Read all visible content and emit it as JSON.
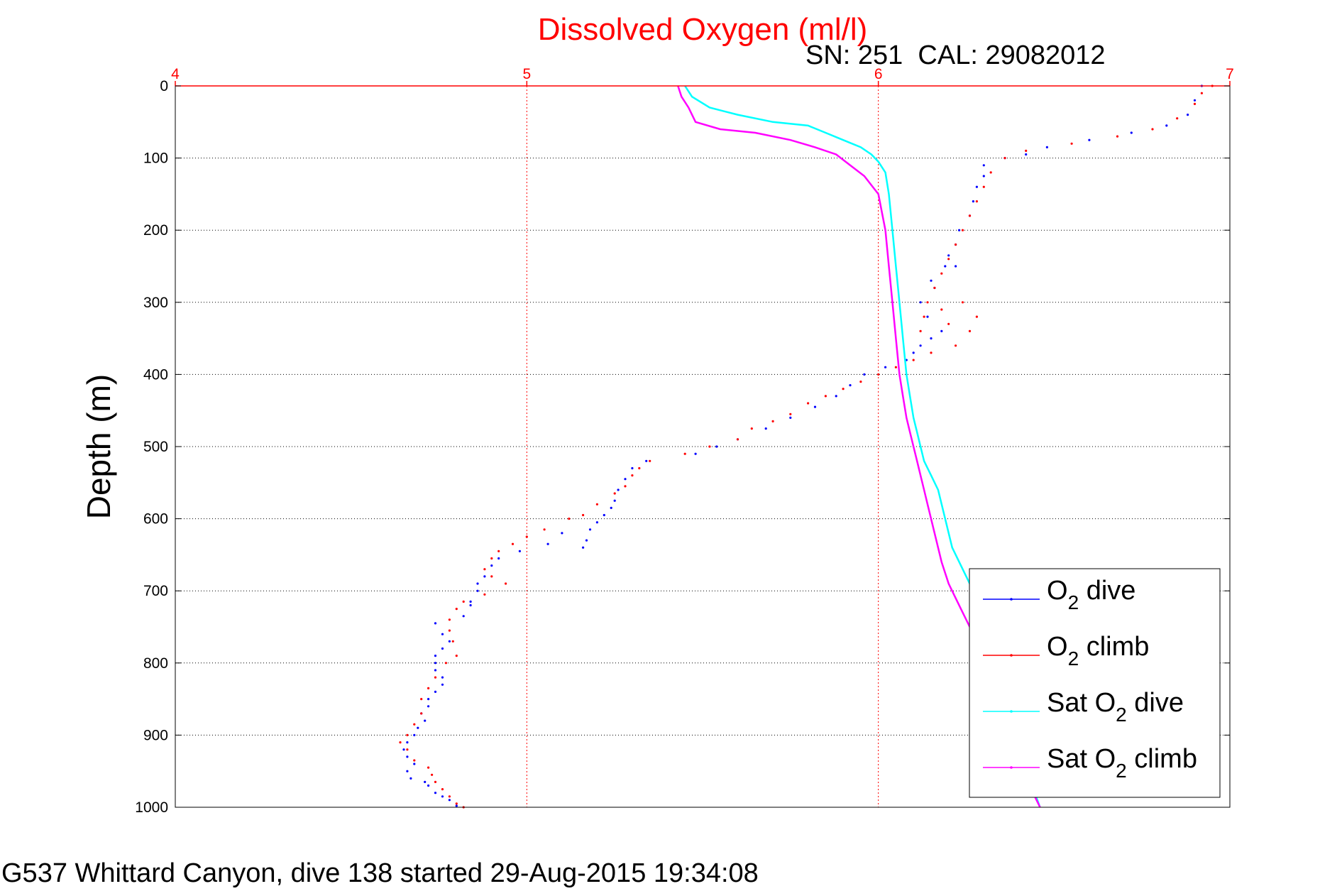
{
  "footer": "G537 Whittard Canyon, dive 138 started 29-Aug-2015 19:34:08",
  "chart_data": {
    "type": "scatter",
    "title": "Dissolved Oxygen (ml/l)",
    "subtitle": "SN: 251  CAL: 29082012",
    "ylabel": "Depth (m)",
    "xlabel": "",
    "xlim": [
      4,
      7
    ],
    "ylim": [
      0,
      1000
    ],
    "y_reversed": true,
    "x_axis_position": "top",
    "xticks": [
      "4",
      "5",
      "6",
      "7"
    ],
    "yticks": [
      "0",
      "100",
      "200",
      "300",
      "400",
      "500",
      "600",
      "700",
      "800",
      "900",
      "1000"
    ],
    "grid": true,
    "legend_position": "bottom-right",
    "series": [
      {
        "name": "O",
        "sub": "2",
        "suffix": " dive",
        "color": "#0000ff",
        "style": "points",
        "x": [
          6.92,
          6.9,
          6.88,
          6.82,
          6.72,
          6.6,
          6.48,
          6.42,
          6.36,
          6.3,
          6.3,
          6.28,
          6.27,
          6.26,
          6.23,
          6.22,
          6.2,
          6.19,
          6.15,
          6.22,
          6.16,
          6.12,
          6.14,
          6.18,
          6.15,
          6.12,
          6.1,
          6.08,
          6.02,
          5.96,
          5.92,
          5.88,
          5.82,
          5.75,
          5.68,
          5.6,
          5.54,
          5.48,
          5.34,
          5.3,
          5.28,
          5.26,
          5.25,
          5.24,
          5.22,
          5.2,
          5.18,
          5.17,
          5.16,
          5.1,
          5.06,
          4.98,
          4.92,
          4.9,
          4.88,
          4.86,
          4.86,
          4.84,
          4.84,
          4.82,
          4.74,
          4.76,
          4.78,
          4.76,
          4.74,
          4.74,
          4.74,
          4.76,
          4.76,
          4.74,
          4.72,
          4.72,
          4.7,
          4.71,
          4.69,
          4.68,
          4.66,
          4.65,
          4.66,
          4.68,
          4.66,
          4.67,
          4.71,
          4.72,
          4.74,
          4.76,
          4.78,
          4.8
        ],
        "y": [
          0,
          20,
          40,
          55,
          65,
          75,
          85,
          95,
          100,
          110,
          125,
          140,
          160,
          180,
          200,
          220,
          235,
          250,
          270,
          250,
          280,
          300,
          320,
          340,
          350,
          360,
          370,
          380,
          390,
          400,
          415,
          430,
          445,
          460,
          475,
          490,
          500,
          510,
          520,
          530,
          545,
          560,
          575,
          585,
          595,
          605,
          615,
          630,
          640,
          620,
          635,
          645,
          655,
          665,
          680,
          690,
          700,
          715,
          720,
          735,
          745,
          760,
          770,
          780,
          790,
          800,
          810,
          820,
          830,
          840,
          850,
          860,
          870,
          880,
          890,
          900,
          910,
          920,
          930,
          940,
          950,
          960,
          965,
          970,
          980,
          985,
          990,
          998
        ]
      },
      {
        "name": "O",
        "sub": "2",
        "suffix": " climb",
        "color": "#ff0000",
        "style": "points",
        "x": [
          6.95,
          6.92,
          6.9,
          6.85,
          6.78,
          6.68,
          6.55,
          6.42,
          6.36,
          6.32,
          6.3,
          6.28,
          6.26,
          6.24,
          6.22,
          6.2,
          6.18,
          6.16,
          6.14,
          6.13,
          6.12,
          6.2,
          6.18,
          6.24,
          6.28,
          6.26,
          6.22,
          6.15,
          6.1,
          6.05,
          6.0,
          5.95,
          5.9,
          5.85,
          5.8,
          5.75,
          5.7,
          5.64,
          5.6,
          5.52,
          5.45,
          5.35,
          5.32,
          5.3,
          5.28,
          5.25,
          5.2,
          5.16,
          5.12,
          5.05,
          5.0,
          4.96,
          4.92,
          4.9,
          4.88,
          4.9,
          4.94,
          4.88,
          4.82,
          4.8,
          4.78,
          4.78,
          4.79,
          4.8,
          4.77,
          4.74,
          4.72,
          4.7,
          4.7,
          4.68,
          4.66,
          4.64,
          4.66,
          4.68,
          4.72,
          4.73,
          4.74,
          4.76,
          4.78,
          4.8,
          4.82
        ],
        "y": [
          0,
          10,
          25,
          45,
          60,
          70,
          80,
          90,
          100,
          120,
          140,
          160,
          180,
          200,
          220,
          240,
          260,
          280,
          300,
          320,
          340,
          330,
          310,
          300,
          320,
          340,
          360,
          370,
          380,
          390,
          400,
          410,
          420,
          430,
          440,
          455,
          465,
          475,
          490,
          500,
          510,
          520,
          530,
          540,
          555,
          565,
          580,
          595,
          600,
          615,
          625,
          635,
          645,
          655,
          670,
          680,
          690,
          705,
          715,
          725,
          740,
          755,
          770,
          790,
          800,
          820,
          835,
          850,
          870,
          885,
          900,
          910,
          920,
          935,
          945,
          955,
          965,
          975,
          985,
          995,
          1000
        ]
      },
      {
        "name": "Sat O",
        "sub": "2",
        "suffix": " dive",
        "color": "#00ffff",
        "style": "line",
        "x": [
          5.45,
          5.47,
          5.52,
          5.6,
          5.7,
          5.8,
          5.85,
          5.9,
          5.95,
          5.98,
          6.0,
          6.02,
          6.03,
          6.04,
          6.05,
          6.06,
          6.07,
          6.08,
          6.09,
          6.1,
          6.11,
          6.12,
          6.13,
          6.15,
          6.17,
          6.19,
          6.21,
          6.23,
          6.25,
          6.27,
          6.29,
          6.3,
          6.32,
          6.34,
          6.37,
          6.4,
          6.43,
          6.46
        ],
        "y": [
          0,
          15,
          30,
          40,
          50,
          55,
          65,
          75,
          85,
          95,
          105,
          120,
          150,
          200,
          250,
          300,
          350,
          400,
          430,
          460,
          480,
          500,
          520,
          540,
          560,
          600,
          640,
          660,
          680,
          700,
          730,
          760,
          800,
          840,
          880,
          920,
          960,
          1000
        ]
      },
      {
        "name": "Sat O",
        "sub": "2",
        "suffix": " climb",
        "color": "#ff00ff",
        "style": "line",
        "x": [
          5.43,
          5.44,
          5.46,
          5.48,
          5.55,
          5.65,
          5.75,
          5.82,
          5.88,
          5.92,
          5.96,
          6.0,
          6.02,
          6.03,
          6.04,
          6.05,
          6.06,
          6.07,
          6.08,
          6.09,
          6.1,
          6.11,
          6.12,
          6.13,
          6.14,
          6.16,
          6.18,
          6.2,
          6.22,
          6.24,
          6.26,
          6.28,
          6.3,
          6.33,
          6.36,
          6.39,
          6.42,
          6.46
        ],
        "y": [
          0,
          15,
          30,
          50,
          60,
          65,
          75,
          85,
          95,
          110,
          125,
          150,
          200,
          250,
          300,
          350,
          400,
          430,
          460,
          480,
          500,
          520,
          540,
          560,
          580,
          620,
          660,
          690,
          710,
          730,
          750,
          770,
          800,
          840,
          880,
          920,
          960,
          1000
        ]
      }
    ]
  }
}
